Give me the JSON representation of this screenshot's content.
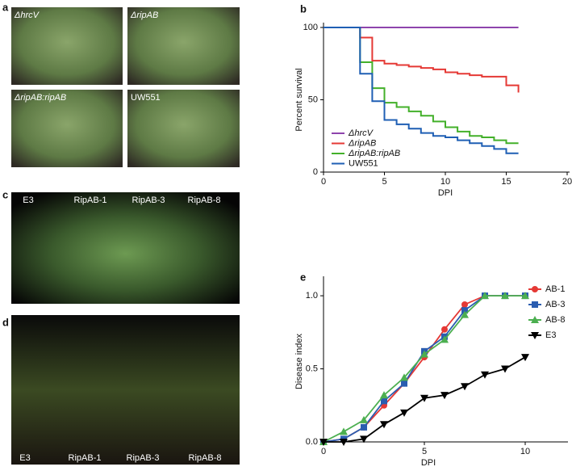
{
  "panel_labels": [
    "a",
    "b",
    "c",
    "d",
    "e"
  ],
  "photos": {
    "a": [
      "ΔhrcV",
      "ΔripAB",
      "ΔripAB:ripAB",
      "UW551"
    ],
    "c": [
      "E3",
      "RipAB-1",
      "RipAB-3",
      "RipAB-8"
    ],
    "d": [
      "E3",
      "RipAB-1",
      "RipAB-3",
      "RipAB-8"
    ]
  },
  "chart_data": [
    {
      "type": "line",
      "step": "post",
      "xlabel": "DPI",
      "ylabel": "Percent survival",
      "x": [
        0,
        3,
        4,
        5,
        6,
        7,
        8,
        9,
        10,
        11,
        12,
        13,
        14,
        15,
        16
      ],
      "xlim": [
        0,
        20
      ],
      "xticks": [
        0,
        5,
        10,
        15,
        20
      ],
      "ylim": [
        0,
        100
      ],
      "yticks": [
        0,
        50,
        100
      ],
      "legend": "lower left",
      "series": [
        {
          "name": "ΔhrcV",
          "color": "#8e44ad",
          "values": [
            100,
            100,
            100,
            100,
            100,
            100,
            100,
            100,
            100,
            100,
            100,
            100,
            100,
            100,
            100
          ]
        },
        {
          "name": "ΔripAB",
          "color": "#e53935",
          "values": [
            100,
            93,
            77,
            75,
            74,
            73,
            72,
            71,
            69,
            68,
            67,
            66,
            66,
            60,
            55
          ]
        },
        {
          "name": "ΔripAB:ripAB",
          "color": "#43b02a",
          "values": [
            100,
            76,
            58,
            48,
            45,
            42,
            39,
            35,
            31,
            28,
            25,
            24,
            22,
            20,
            20
          ]
        },
        {
          "name": "UW551",
          "color": "#1f5fb4",
          "values": [
            100,
            68,
            49,
            36,
            33,
            30,
            27,
            25,
            24,
            22,
            20,
            18,
            16,
            13,
            13
          ]
        }
      ]
    },
    {
      "type": "line",
      "xlabel": "DPI",
      "ylabel": "Disease index",
      "x": [
        0,
        1,
        2,
        3,
        4,
        5,
        6,
        7,
        8,
        9,
        10
      ],
      "xlim": [
        0,
        12
      ],
      "xticks": [
        0,
        5,
        10
      ],
      "ylim": [
        0,
        1.1
      ],
      "yticks": [
        {
          "value": 0,
          "label": "0.0"
        },
        0.5,
        {
          "value": 1,
          "label": "1.0"
        }
      ],
      "legend": "upper right",
      "series": [
        {
          "name": "AB-1",
          "color": "#e53935",
          "marker": "circle",
          "values": [
            0,
            0.02,
            0.1,
            0.25,
            0.4,
            0.58,
            0.77,
            0.94,
            1,
            1,
            1
          ]
        },
        {
          "name": "AB-3",
          "color": "#2a5db0",
          "marker": "square",
          "values": [
            0,
            0.02,
            0.1,
            0.28,
            0.4,
            0.62,
            0.72,
            0.9,
            1,
            1,
            1
          ]
        },
        {
          "name": "AB-8",
          "color": "#4caf50",
          "marker": "triangle",
          "values": [
            0,
            0.07,
            0.15,
            0.32,
            0.44,
            0.6,
            0.7,
            0.87,
            1,
            1,
            1
          ]
        },
        {
          "name": "E3",
          "color": "#000000",
          "marker": "triangle-down",
          "values": [
            0,
            0,
            0.02,
            0.12,
            0.2,
            0.3,
            0.32,
            0.38,
            0.46,
            0.5,
            0.58
          ]
        }
      ]
    }
  ]
}
